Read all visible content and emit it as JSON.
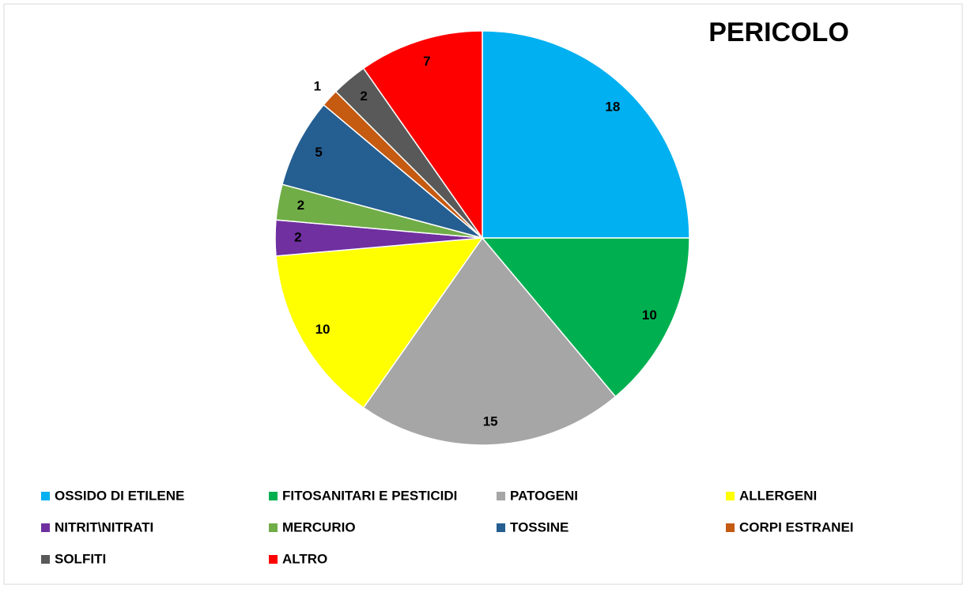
{
  "chart_data": {
    "type": "pie",
    "title": "PERICOLO",
    "categories": [
      "OSSIDO DI ETILENE",
      "FITOSANITARI E PESTICIDI",
      "PATOGENI",
      "ALLERGENI",
      "NITRIT\\NITRATI",
      "MERCURIO",
      "TOSSINE",
      "CORPI ESTRANEI",
      "SOLFITI",
      "ALTRO"
    ],
    "values": [
      18,
      10,
      15,
      10,
      2,
      2,
      5,
      1,
      2,
      7
    ],
    "colors": [
      "#00b0f0",
      "#00b050",
      "#a6a6a6",
      "#ffff00",
      "#7030a0",
      "#70ad47",
      "#255e91",
      "#c55a11",
      "#595959",
      "#ff0000"
    ],
    "legend": "bottom"
  }
}
